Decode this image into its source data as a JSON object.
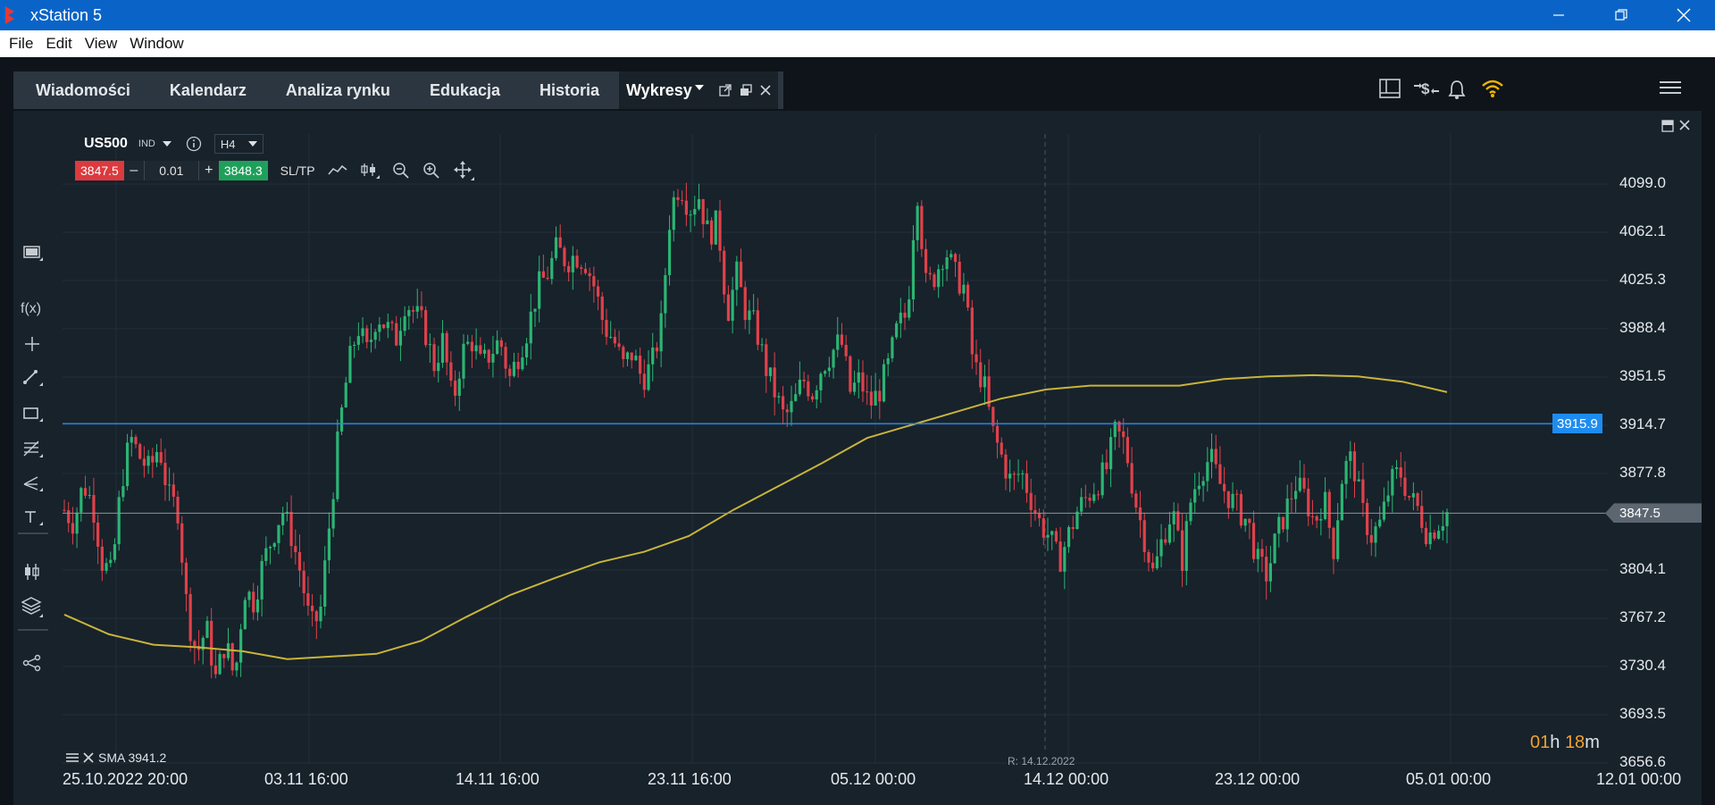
{
  "window": {
    "title": "xStation 5"
  },
  "menu": {
    "file": "File",
    "edit": "Edit",
    "view": "View",
    "window": "Window"
  },
  "tabs": [
    "Wiadomości",
    "Kalendarz",
    "Analiza rynku",
    "Edukacja",
    "Historia"
  ],
  "active_tab": "Wykresy",
  "instrument": {
    "symbol": "US500",
    "class": "IND",
    "timeframe": "H4"
  },
  "trade": {
    "sell_price": "3847.5",
    "minus": "–",
    "volume": "0.01",
    "plus": "+",
    "buy_price": "3848.3",
    "sltp": "SL/TP"
  },
  "indicator": {
    "label": "SMA 3941.2"
  },
  "crosshair_label": "R: 14.12.2022",
  "timer": {
    "hours": "01",
    "h": "h",
    "minutes": "18",
    "m": "m"
  },
  "hline_price": "3915.9",
  "current_price": "3847.5",
  "colors": {
    "up": "#2bb573",
    "down": "#e0414a",
    "sma": "#c9b43a",
    "hline": "#2a8cf0",
    "price_line": "#8a949c"
  },
  "chart_data": {
    "type": "candlestick",
    "instrument": "US500",
    "timeframe": "H4",
    "ylim": [
      3650,
      4140
    ],
    "y_ticks": [
      "4099.0",
      "4062.1",
      "4025.3",
      "3988.4",
      "3951.5",
      "3914.7",
      "3877.8",
      "3847.5",
      "3804.1",
      "3767.2",
      "3730.4",
      "3693.5",
      "3656.6"
    ],
    "x_ticks": [
      "25.10.2022 20:00",
      "03.11 16:00",
      "14.11 16:00",
      "23.11 16:00",
      "05.12 00:00",
      "14.12 00:00",
      "23.12 00:00",
      "05.01 00:00",
      "12.01 00:00"
    ],
    "horizontal_line": 3915.9,
    "last_price": 3847.5,
    "close_path": [
      3850,
      3840,
      3870,
      3855,
      3810,
      3800,
      3870,
      3905,
      3890,
      3880,
      3900,
      3860,
      3850,
      3770,
      3740,
      3760,
      3720,
      3750,
      3720,
      3790,
      3780,
      3810,
      3830,
      3850,
      3830,
      3800,
      3760,
      3770,
      3840,
      3910,
      3960,
      3990,
      3970,
      4000,
      3990,
      3980,
      4010,
      4000,
      3990,
      3960,
      3980,
      3930,
      3970,
      3980,
      3960,
      3970,
      3980,
      3950,
      3970,
      3990,
      4020,
      4030,
      4050,
      4040,
      4045,
      4040,
      4020,
      3990,
      3980,
      3960,
      3970,
      3950,
      3960,
      3990,
      4080,
      4100,
      4080,
      4090,
      4060,
      4070,
      4000,
      4030,
      4000,
      3990,
      3960,
      3940,
      3920,
      3930,
      3950,
      3940,
      3960,
      3970,
      3980,
      3940,
      3950,
      3930,
      3940,
      3960,
      3990,
      4000,
      4100,
      4020,
      4030,
      4050,
      4030,
      4020,
      3960,
      3950,
      3910,
      3890,
      3870,
      3880,
      3860,
      3840,
      3830,
      3810,
      3830,
      3850,
      3860,
      3870,
      3880,
      3910,
      3900,
      3860,
      3830,
      3800,
      3830,
      3850,
      3810,
      3860,
      3880,
      3890,
      3870,
      3860,
      3850,
      3840,
      3810,
      3800,
      3830,
      3850,
      3870,
      3860,
      3840,
      3860,
      3820,
      3880,
      3890,
      3850,
      3830,
      3840,
      3870,
      3880,
      3860,
      3850,
      3830,
      3840,
      3848
    ],
    "sma": {
      "name": "SMA",
      "value": 3941.2,
      "values": [
        3770,
        3755,
        3747,
        3745,
        3742,
        3736,
        3738,
        3740,
        3750,
        3768,
        3785,
        3798,
        3810,
        3818,
        3830,
        3850,
        3868,
        3886,
        3905,
        3915,
        3925,
        3935,
        3942,
        3945,
        3945,
        3945,
        3950,
        3952,
        3953,
        3952,
        3948,
        3940
      ]
    },
    "xlabel": "",
    "ylabel": ""
  }
}
